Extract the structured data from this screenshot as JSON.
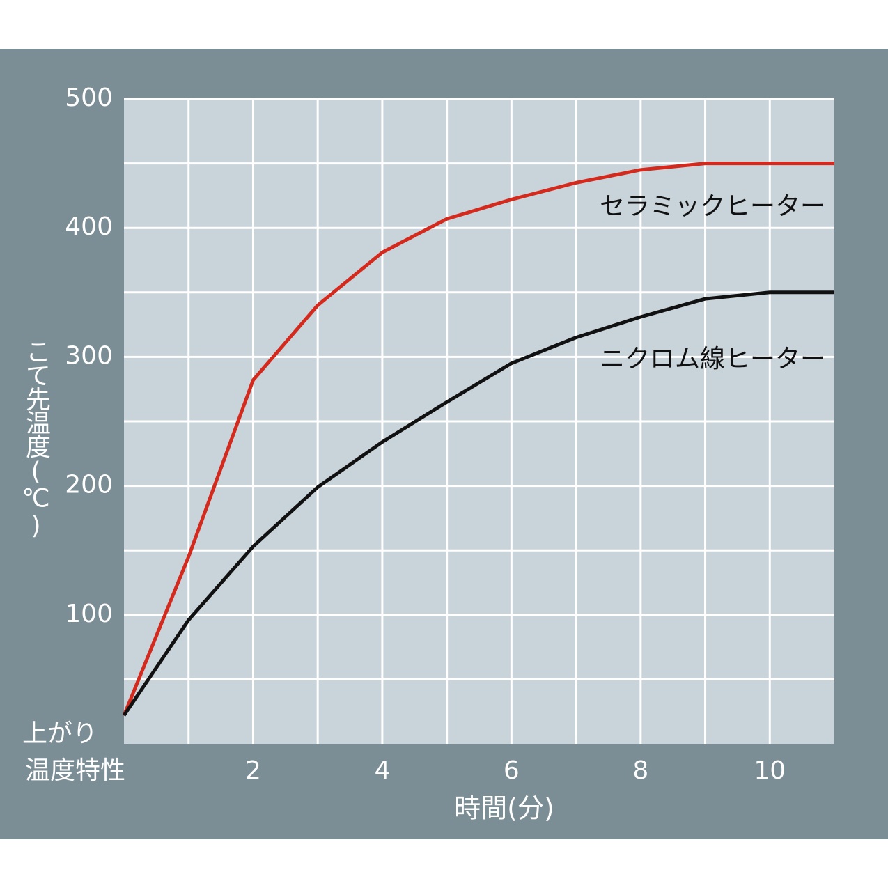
{
  "chart_data": {
    "type": "line",
    "title_lines": [
      "上がり",
      "温度特性"
    ],
    "x_label": "時間(分)",
    "y_label": "こて先温度(℃)",
    "x": [
      0,
      1,
      2,
      3,
      4,
      5,
      6,
      7,
      8,
      9,
      10,
      11
    ],
    "series": [
      {
        "name": "セラミックヒーター",
        "color": "#d42a1e",
        "values": [
          22,
          145,
          282,
          340,
          381,
          407,
          422,
          435,
          445,
          450,
          450,
          450
        ]
      },
      {
        "name": "ニクロム線ヒーター",
        "color": "#111111",
        "values": [
          22,
          96,
          153,
          199,
          234,
          265,
          295,
          315,
          331,
          345,
          350,
          350
        ]
      }
    ],
    "xlim": [
      0,
      11
    ],
    "ylim": [
      0,
      500
    ],
    "xticks": [
      2,
      4,
      6,
      8,
      10
    ],
    "yticks": [
      100,
      200,
      300,
      400,
      500
    ],
    "xgrid_minor": [
      1,
      3,
      5,
      7,
      9
    ],
    "ygrid_minor": [
      50,
      150,
      250,
      350,
      450
    ],
    "grid": true
  }
}
